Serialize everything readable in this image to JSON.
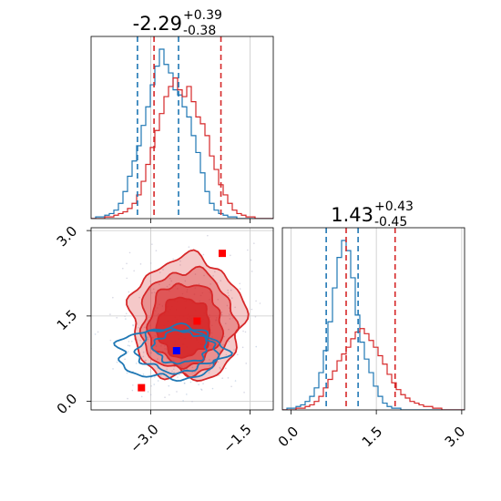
{
  "chart_data": {
    "type": "corner",
    "params": [
      "p1",
      "p2"
    ],
    "colors": {
      "blue": "#1f77b4",
      "red": "#d62728",
      "marker_blue": "#0000ff",
      "marker_red": "#ff0000",
      "grid": "#c8c8c8"
    },
    "panels": [
      {
        "id": "hist_p1",
        "type": "histogram",
        "title": {
          "median": "-2.29",
          "plus": "+0.39",
          "minus": "-0.38"
        },
        "xlim": [
          -3.9,
          -1.15
        ],
        "xticks": [
          -3.0,
          -1.5
        ],
        "quantiles_blue": [
          -3.2,
          -2.58
        ],
        "quantiles_red": [
          -2.95,
          -1.94
        ],
        "series": [
          {
            "color": "blue",
            "center": -2.75,
            "sigma": 0.34,
            "counts": [
              0,
              1,
              1,
              2,
              3,
              5,
              9,
              16,
              25,
              34,
              43,
              55,
              66,
              79,
              90,
              100,
              91,
              86,
              76,
              73,
              66,
              60,
              49,
              39,
              27,
              16,
              9,
              5,
              3,
              2,
              1,
              1,
              0,
              0,
              0,
              0,
              0,
              0,
              0,
              0
            ]
          },
          {
            "color": "red",
            "center": -2.45,
            "sigma": 0.38,
            "counts": [
              0,
              0,
              0,
              1,
              1,
              2,
              3,
              4,
              6,
              9,
              14,
              22,
              32,
              42,
              52,
              62,
              72,
              78,
              83,
              76,
              72,
              78,
              69,
              60,
              56,
              49,
              37,
              29,
              20,
              14,
              9,
              5,
              3,
              2,
              1,
              1,
              0,
              0,
              0,
              0
            ]
          }
        ]
      },
      {
        "id": "hist_p2",
        "type": "histogram",
        "title": {
          "median": "1.43",
          "plus": "+0.43",
          "minus": "-0.45"
        },
        "xlim": [
          -0.15,
          3.05
        ],
        "xticks": [
          0.0,
          1.5,
          3.0
        ],
        "tick_labels": [
          "0.0",
          "1.5",
          "3.0"
        ],
        "quantiles_blue": [
          0.62,
          1.18
        ],
        "quantiles_red": [
          0.97,
          1.83
        ],
        "series": [
          {
            "color": "blue",
            "counts": [
              0,
              1,
              1,
              2,
              3,
              5,
              8,
              13,
              22,
              35,
              52,
              72,
              90,
              100,
              94,
              78,
              56,
              40,
              30,
              22,
              14,
              8,
              4,
              2,
              1,
              1,
              0,
              0,
              0,
              0,
              0,
              0,
              0,
              0,
              0,
              0,
              0,
              0,
              0,
              0
            ]
          },
          {
            "color": "red",
            "counts": [
              0,
              0,
              0,
              1,
              1,
              2,
              3,
              5,
              8,
              13,
              18,
              23,
              29,
              33,
              37,
              42,
              46,
              48,
              45,
              41,
              37,
              32,
              27,
              21,
              16,
              12,
              9,
              7,
              5,
              4,
              3,
              2,
              2,
              1,
              1,
              0,
              0,
              0,
              0,
              0
            ]
          }
        ]
      },
      {
        "id": "scatter_p1_p2",
        "type": "contour",
        "xlim": [
          -3.9,
          -1.15
        ],
        "ylim": [
          -0.15,
          3.05
        ],
        "xticks": [
          -3.0,
          -1.5
        ],
        "yticks": [
          0.0,
          1.5,
          3.0
        ],
        "tick_labels_x": [
          "−3.0",
          "−1.5"
        ],
        "tick_labels_y": [
          "0.0",
          "1.5",
          "3.0"
        ],
        "red_contours": [
          {
            "cx": -2.45,
            "cy": 1.45,
            "rx": 0.85,
            "ry": 1.08,
            "fill_opacity": 0.25
          },
          {
            "cx": -2.45,
            "cy": 1.4,
            "rx": 0.7,
            "ry": 0.9,
            "fill_opacity": 0.35
          },
          {
            "cx": -2.48,
            "cy": 1.35,
            "rx": 0.55,
            "ry": 0.72,
            "fill_opacity": 0.55
          },
          {
            "cx": -2.5,
            "cy": 1.3,
            "rx": 0.4,
            "ry": 0.52,
            "fill_opacity": 0.85
          }
        ],
        "blue_contours": [
          {
            "cx": -2.7,
            "cy": 0.85,
            "rx": 0.8,
            "ry": 0.45
          },
          {
            "cx": -2.6,
            "cy": 0.9,
            "rx": 0.6,
            "ry": 0.38
          },
          {
            "cx": -2.55,
            "cy": 0.95,
            "rx": 0.4,
            "ry": 0.28
          }
        ],
        "markers": [
          {
            "color": "marker_red",
            "x": -1.92,
            "y": 2.6
          },
          {
            "color": "marker_red",
            "x": -2.3,
            "y": 1.41
          },
          {
            "color": "marker_red",
            "x": -3.14,
            "y": 0.24
          },
          {
            "color": "marker_blue",
            "x": -2.61,
            "y": 0.89
          }
        ]
      }
    ]
  }
}
